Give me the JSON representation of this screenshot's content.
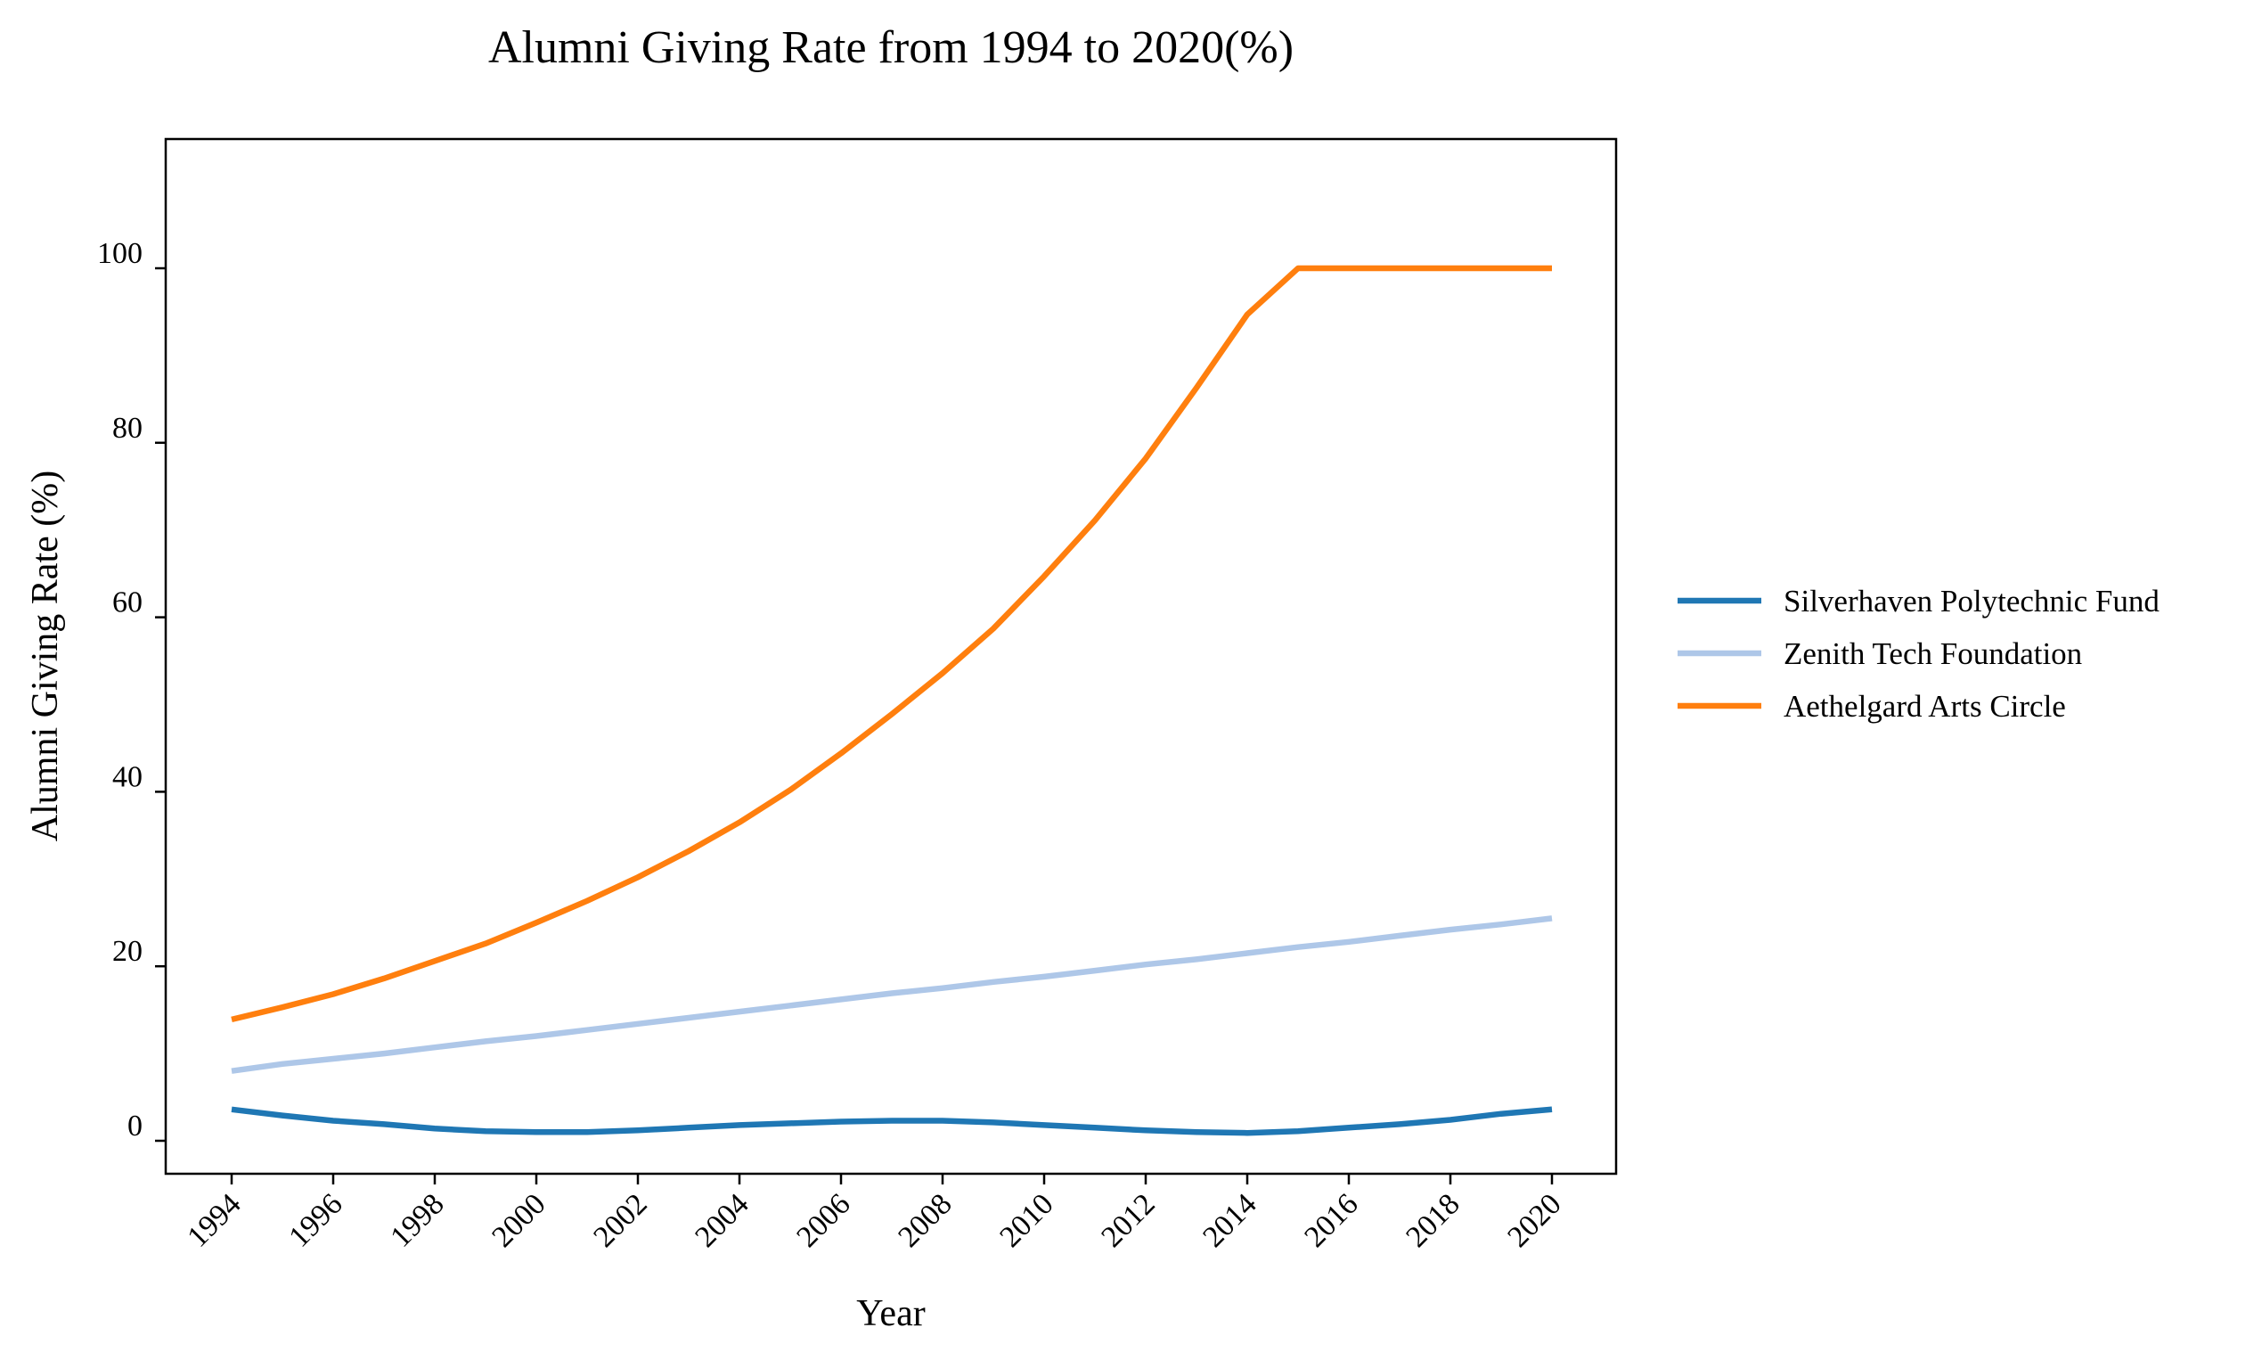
{
  "chart_data": {
    "type": "line",
    "title": "Alumni Giving Rate from 1994 to 2020(%)",
    "xlabel": "Year",
    "ylabel": "Alumni Giving Rate (%)",
    "x": [
      1994,
      1995,
      1996,
      1997,
      1998,
      1999,
      2000,
      2001,
      2002,
      2003,
      2004,
      2005,
      2006,
      2007,
      2008,
      2009,
      2010,
      2011,
      2012,
      2013,
      2014,
      2015,
      2016,
      2017,
      2018,
      2019,
      2020
    ],
    "xlim": [
      1994,
      2020
    ],
    "ylim": [
      -4,
      115
    ],
    "xticks": [
      "1994",
      "1996",
      "1998",
      "2000",
      "2002",
      "2004",
      "2006",
      "2008",
      "2010",
      "2012",
      "2014",
      "2016",
      "2018",
      "2020"
    ],
    "yticks": [
      "0",
      "20",
      "40",
      "60",
      "80",
      "100"
    ],
    "grid": false,
    "legend_position": "right",
    "series": [
      {
        "name": "Silverhaven Polytechnic Fund",
        "color": "#1f77b4",
        "values": [
          3.6,
          2.9,
          2.3,
          1.9,
          1.4,
          1.1,
          1.0,
          1.0,
          1.2,
          1.5,
          1.8,
          2.0,
          2.2,
          2.3,
          2.3,
          2.1,
          1.8,
          1.5,
          1.2,
          1.0,
          0.9,
          1.1,
          1.5,
          1.9,
          2.4,
          3.1,
          3.6
        ]
      },
      {
        "name": "Zenith Tech Foundation",
        "color": "#aec7e8",
        "values": [
          8.0,
          8.8,
          9.4,
          10.0,
          10.7,
          11.4,
          12.0,
          12.7,
          13.4,
          14.1,
          14.8,
          15.5,
          16.2,
          16.9,
          17.5,
          18.2,
          18.8,
          19.5,
          20.2,
          20.8,
          21.5,
          22.2,
          22.8,
          23.5,
          24.2,
          24.8,
          25.5
        ]
      },
      {
        "name": "Aethelgard Arts Circle",
        "color": "#ff7f0e",
        "values": [
          13.9,
          15.3,
          16.8,
          18.6,
          20.6,
          22.6,
          25.0,
          27.5,
          30.2,
          33.2,
          36.5,
          40.2,
          44.4,
          48.9,
          53.6,
          58.7,
          64.7,
          71.1,
          78.2,
          86.3,
          94.7,
          100.0,
          100.0,
          100.0,
          100.0,
          100.0,
          100.0
        ]
      }
    ]
  }
}
